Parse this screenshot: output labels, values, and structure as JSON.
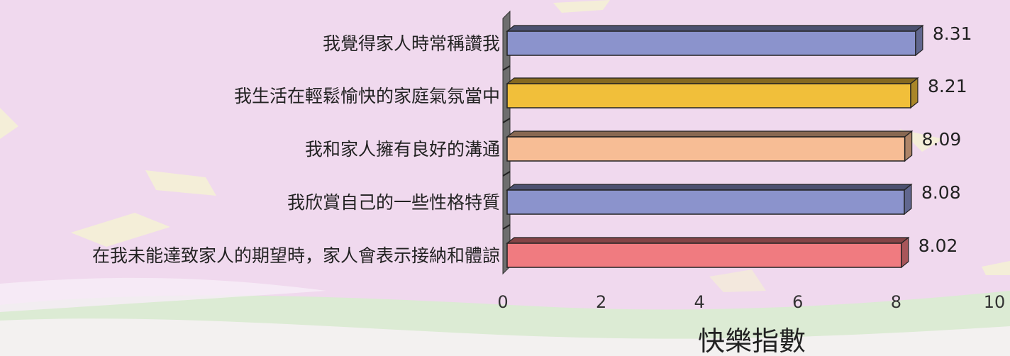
{
  "chart_data": {
    "type": "bar",
    "orientation": "horizontal",
    "categories": [
      "我覺得家人時常稱讚我",
      "我生活在輕鬆愉快的家庭氣氛當中",
      "我和家人擁有良好的溝通",
      "我欣賞自己的一些性格特質",
      "在我未能達致家人的期望時，家人會表示接納和體諒"
    ],
    "values": [
      8.31,
      8.21,
      8.09,
      8.08,
      8.02
    ],
    "value_labels": [
      "8.31",
      "8.21",
      "8.09",
      "8.08",
      "8.02"
    ],
    "bar_colors": [
      "#8b93cc",
      "#f1bf3a",
      "#f7bd95",
      "#8b93cc",
      "#f07b80"
    ],
    "xlabel": "快樂指數",
    "xlim": [
      0,
      10
    ],
    "xticks": [
      0,
      2,
      4,
      6,
      8,
      10
    ],
    "grid": false,
    "legend": "none",
    "style": "3d"
  },
  "colors": {
    "background": "#f0d9ee",
    "meadow": "#d9ecd0",
    "wall": "#6e6e6e",
    "text": "#222222"
  }
}
